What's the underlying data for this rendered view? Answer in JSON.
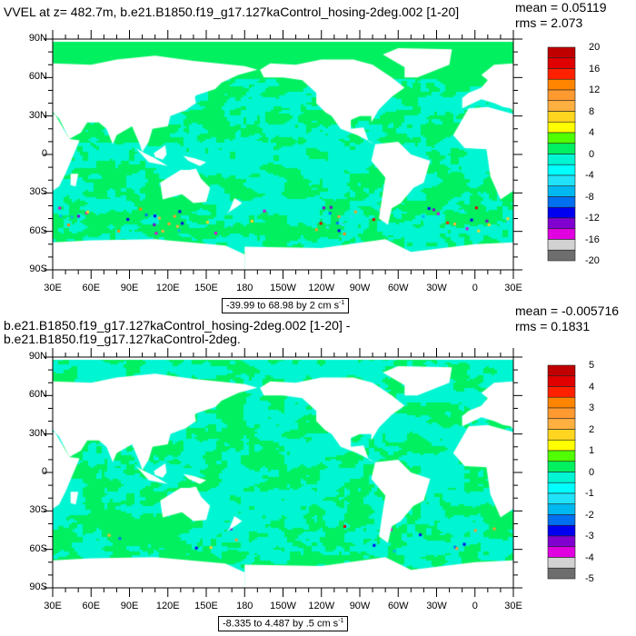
{
  "chart_data": [
    {
      "type": "heatmap",
      "title": "VVEL at z= 482.7m, b.e21.B1850.f19_g17.127kaControl_hosing-2deg.002 [1-20]",
      "mean_label": "mean = 0.05119",
      "rms_label": "rms = 2.073",
      "info_label": "-39.99 to 68.98 by 2 cm s",
      "info_sup": "-1",
      "x_ticks": [
        "30E",
        "60E",
        "90E",
        "120E",
        "150E",
        "180",
        "150W",
        "120W",
        "90W",
        "60W",
        "30W",
        "0",
        "30E"
      ],
      "y_ticks": [
        "90N",
        "60N",
        "30N",
        "0",
        "30S",
        "60S",
        "90S"
      ],
      "colorbar_labels": [
        "20",
        "16",
        "12",
        "8",
        "4",
        "0",
        "-4",
        "-8",
        "-12",
        "-16",
        "-20"
      ],
      "levels_range": [
        -20,
        20
      ],
      "level_step": 2,
      "xlim": [
        "30E",
        "30E"
      ],
      "ylim": [
        "90S",
        "90N"
      ]
    },
    {
      "type": "heatmap",
      "title": "b.e21.B1850.f19_g17.127kaControl_hosing-2deg.002 [1-20] - b.e21.B1850.f19_g17.127kaControl-2deg.",
      "mean_label": "mean = -0.005716",
      "rms_label": "rms = 0.1831",
      "info_label": "-8.335 to 4.487 by .5 cm s",
      "info_sup": "-1",
      "x_ticks": [
        "30E",
        "60E",
        "90E",
        "120E",
        "150E",
        "180",
        "150W",
        "120W",
        "90W",
        "60W",
        "30W",
        "0",
        "30E"
      ],
      "y_ticks": [
        "90N",
        "60N",
        "30N",
        "0",
        "30S",
        "60S",
        "90S"
      ],
      "colorbar_labels": [
        "5",
        "4",
        "3",
        "2",
        "1",
        "0",
        "-1",
        "-2",
        "-3",
        "-4",
        "-5"
      ],
      "levels_range": [
        -5,
        5
      ],
      "level_step": 0.5,
      "xlim": [
        "30E",
        "30E"
      ],
      "ylim": [
        "90S",
        "90N"
      ]
    }
  ],
  "colors": {
    "palette_bottom_to_top": [
      "#6e6e6e",
      "#d2d2d2",
      "#e000e0",
      "#8000d0",
      "#0000f0",
      "#0070f0",
      "#00b8f0",
      "#20e2f8",
      "#00ffff",
      "#00f5d2",
      "#00f060",
      "#50ff00",
      "#ffff00",
      "#ffd520",
      "#ffb040",
      "#ff9a30",
      "#ff8400",
      "#ff2000",
      "#e00000",
      "#c00000"
    ],
    "land": "#ffffff"
  }
}
